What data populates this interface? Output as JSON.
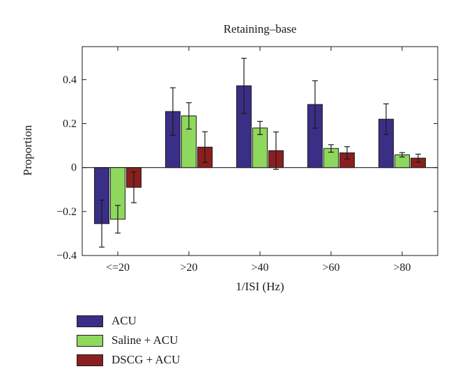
{
  "chart_data": {
    "type": "bar",
    "title": "Retaining–base",
    "xlabel": "1/ISI (Hz)",
    "ylabel": "Proportion",
    "ylim": [
      -0.4,
      0.55
    ],
    "yticks": [
      -0.4,
      -0.2,
      0,
      0.2,
      0.4
    ],
    "ytick_labels": [
      "−0.4",
      "−0.2",
      "0",
      "0.2",
      "0.4"
    ],
    "categories": [
      "<=20",
      ">20",
      ">40",
      ">60",
      ">80"
    ],
    "series": [
      {
        "name": "ACU",
        "color": "#3a2f86",
        "values": [
          -0.255,
          0.255,
          0.372,
          0.287,
          0.22
        ],
        "errors": [
          0.107,
          0.108,
          0.125,
          0.108,
          0.07
        ]
      },
      {
        "name": "Saline + ACU",
        "color": "#8fd85e",
        "values": [
          -0.235,
          0.235,
          0.18,
          0.087,
          0.058
        ],
        "errors": [
          0.063,
          0.06,
          0.03,
          0.017,
          0.01
        ]
      },
      {
        "name": "DSCG + ACU",
        "color": "#8b1f1f",
        "values": [
          -0.09,
          0.093,
          0.077,
          0.067,
          0.043
        ],
        "errors": [
          0.07,
          0.07,
          0.085,
          0.028,
          0.018
        ]
      }
    ],
    "grid": false,
    "legend_position": "bottom-left"
  }
}
